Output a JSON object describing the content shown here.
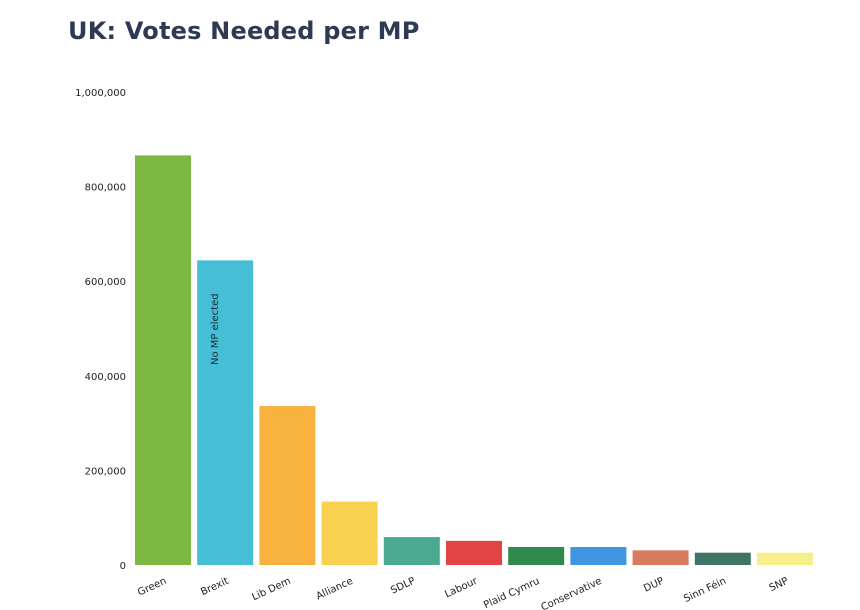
{
  "chart_data": {
    "type": "bar",
    "title": "UK: Votes Needed per MP",
    "xlabel": "",
    "ylabel": "",
    "ylim": [
      0,
      1000000
    ],
    "yticks": [
      "0",
      "200,000",
      "400,000",
      "600,000",
      "800,000",
      "1,000,000"
    ],
    "ytick_values": [
      0,
      200000,
      400000,
      600000,
      800000,
      1000000
    ],
    "grid": false,
    "categories": [
      "Green",
      "Brexit",
      "Lib Dem",
      "Alliance",
      "SDLP",
      "Labour",
      "Plaid Cymru",
      "Conservative",
      "DUP",
      "Sinn Féin",
      "SNP"
    ],
    "values": [
      866000,
      644000,
      336000,
      134000,
      59000,
      51000,
      38000,
      38000,
      31000,
      26000,
      26000
    ],
    "colors": [
      "#7cb842",
      "#45bed6",
      "#f6b13f",
      "#f7d14f",
      "#4aa98f",
      "#e14442",
      "#2f8a4e",
      "#3f95df",
      "#d97b5e",
      "#407466",
      "#f7f08a"
    ],
    "annotations": [
      {
        "category": "Brexit",
        "text": "No MP elected"
      }
    ]
  }
}
